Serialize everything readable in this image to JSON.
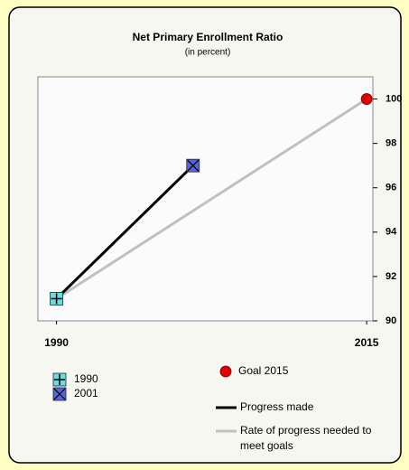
{
  "chart_data": {
    "type": "line",
    "title": "Net Primary Enrollment Ratio",
    "subtitle": "(in percent)",
    "xlim": [
      1988.5,
      2015.5
    ],
    "xticks": [
      1990,
      2015
    ],
    "ylim": [
      90,
      101
    ],
    "yticks": [
      90,
      92,
      94,
      96,
      98,
      100
    ],
    "series": [
      {
        "name": "1990",
        "color": "#66dede",
        "marker": "plus-square",
        "x": [
          1990
        ],
        "values": [
          91
        ]
      },
      {
        "name": "2001",
        "color": "#5566dd",
        "marker": "x-square",
        "x": [
          2001
        ],
        "values": [
          97
        ]
      },
      {
        "name": "Goal 2015",
        "color": "#e00000",
        "marker": "circle",
        "x": [
          2015
        ],
        "values": [
          100
        ]
      },
      {
        "name": "Progress made",
        "color": "#000000",
        "marker": "line",
        "x": [
          1990,
          2001
        ],
        "values": [
          91,
          97
        ]
      },
      {
        "name": "Rate of progress needed to meet goals",
        "color": "#c0c0c0",
        "marker": "line",
        "x": [
          1990,
          2015
        ],
        "values": [
          91,
          100
        ]
      }
    ]
  }
}
